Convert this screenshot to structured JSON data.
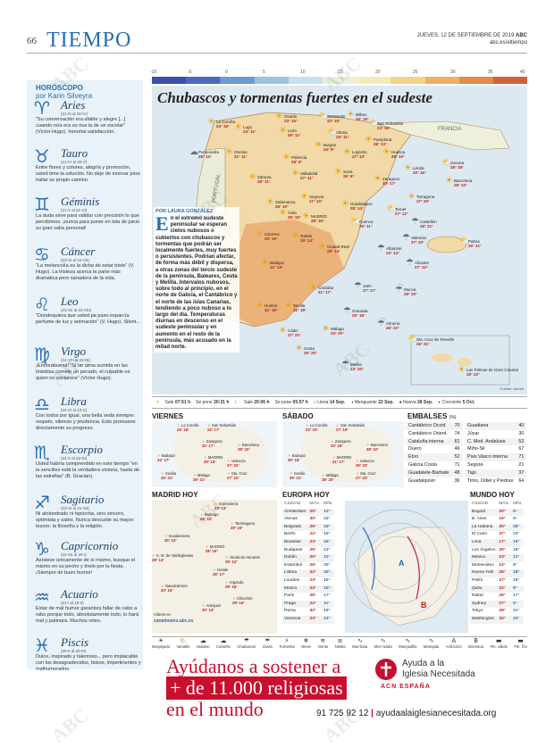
{
  "header": {
    "page_number": "66",
    "section": "TIEMPO",
    "date": "JUEVES, 12 DE SEPTIEMBRE DE 2019",
    "brand": "ABC",
    "url": "abc.es/eltiempo"
  },
  "horoscope": {
    "title": "HORÓSCOPO",
    "author": "por Karin Silveyra",
    "signs": [
      {
        "glyph": "♈",
        "name": "Aries",
        "dates": "(21-III al 20-IV)",
        "text": "“Su conversación era afable y alegre [...] cuando reía era su risa la de un escolar” (Víctor Hugo). Inmortal satisfacción."
      },
      {
        "glyph": "♉",
        "name": "Tauro",
        "dates": "(21-IV al 20-V)",
        "text": "Entre flores y colores, alegría y promoción, usted time la solución. No deje de innovar para hallar su propio camino."
      },
      {
        "glyph": "♊",
        "name": "Géminis",
        "dates": "(21-V al 21-VI)",
        "text": "La duda sirve para validar con precisión lo que percibimos. ¡nunca para poner en tela de juicio su gran valía personal!"
      },
      {
        "glyph": "♋",
        "name": "Cáncer",
        "dates": "(22-VI al 22-VII)",
        "text": "“La melancolía es la dicha de estar triste” (V. Hugo). La tristeza acerca la parte más dramática pero sanadora de la vida."
      },
      {
        "glyph": "♌",
        "name": "Leo",
        "dates": "(23-VII al 22-VIII)",
        "text": "“Dondequiera que usted pa paso esparcía perfume de luz y animación” (V. Hugo). Silent..."
      },
      {
        "glyph": "♍",
        "name": "Virgo",
        "dates": "(24-VIII al 23-IX)",
        "text": "¡Enhorabuena! “Si un alma sumida en las tinieblas comete un pecado, el culpable es quien no esclarece” (Víctor Hugo)."
      },
      {
        "glyph": "♎",
        "name": "Libra",
        "dates": "(24-IX al 23-X)",
        "text": "Con todos por igual, una bella seda siempre: respeto, silencio y prudencia. Esto promueve directamente su progreso."
      },
      {
        "glyph": "♏",
        "name": "Escorpio",
        "dates": "(24-X al 22-XI)",
        "text": "Usted habría comprendido en este tiempo “en la sencillez está la verdadera victoria, hasta de las estrellas” (B. Gracián)."
      },
      {
        "glyph": "♐",
        "name": "Sagitario",
        "dates": "(23-XI al 21-XII)",
        "text": "Ni atolondrado ni hipócrita, sino sincero, optimista y sabio. Nunca descuide su mayor tesoro: la filosofía y la religión."
      },
      {
        "glyph": "♑",
        "name": "Capricornio",
        "dates": "(22-XII al 20-I)",
        "text": "Asístese únicamente de sí mismo, busque el mismo en su pecho y tírelo por la fiesta. ¡Siempre de buen humor!"
      },
      {
        "glyph": "♒",
        "name": "Acuario",
        "dates": "(21-I al 19-II)",
        "text": "Estar de mal humor garantiza fallar de cabo a rabo porque todo, absolutamente todo, lo hará mal y patinará. Muchos retes."
      },
      {
        "glyph": "♓",
        "name": "Piscis",
        "dates": "(20-II al 20-III)",
        "text": "Dulce, inspirado y talentoso... pero implacable con los desagradecidos, falsos, impertinentes y malhumorados."
      }
    ]
  },
  "temperature_scale": {
    "labels": [
      "-10",
      "-5",
      "0",
      "5",
      "10",
      "15",
      "20",
      "25",
      "30",
      "35",
      "40"
    ],
    "colors": [
      "#3b4fa8",
      "#4a6bbd",
      "#6b9bd1",
      "#9cc3e4",
      "#c6e0ee",
      "#e7f0d8",
      "#f4ecb8",
      "#f5d38a",
      "#eeb066",
      "#e38a4a",
      "#d1603a"
    ]
  },
  "main_map": {
    "title": "Chubascos y tormentas fuertes en el sudeste",
    "byline": "POR LAURA GONZÁLEZ",
    "article": "En el extremo sudeste peninsular se esperan cielos nubosos o cubiertos con chubascos y tormentas que podrán ser localmente fuertes, muy fuertes o persistentes. Podrían afectar, de forma más débil y dispersa, a otras zonas del tercio sudeste de la península, Baleares, Ceuta y Melilla. Intervalos nubosos, sobre todo al principio, en el norte de Galicia, el Cantábrico y el norte de las islas Canarias, tendiendo a poco nuboso a lo largo del día. Temperaturas diurnas en descenso en el sudeste peninsular y en aumento en el resto de la península, más acusado en la mitad norte.",
    "country_labels": [
      "FRANCIA",
      "PORTUGAL"
    ],
    "cities": [
      {
        "name": "Oviedo",
        "temps": "23° 15°"
      },
      {
        "name": "Santander",
        "temps": "22° 16°"
      },
      {
        "name": "Bilbao",
        "temps": "25° 15°"
      },
      {
        "name": "San Sebastián",
        "temps": "23° 16°"
      },
      {
        "name": "La Coruña",
        "temps": "24° 16°"
      },
      {
        "name": "Lugo",
        "temps": "24° 11°"
      },
      {
        "name": "León",
        "temps": "25° 11°"
      },
      {
        "name": "Vitoria",
        "temps": "25° 11°"
      },
      {
        "name": "Pamplona",
        "temps": "26° 13°"
      },
      {
        "name": "Burgos",
        "temps": "24° 8°"
      },
      {
        "name": "Logroño",
        "temps": "27° 13°"
      },
      {
        "name": "Huesca",
        "temps": "28° 15°"
      },
      {
        "name": "Pontevedra",
        "temps": "28° 13°"
      },
      {
        "name": "Orense",
        "temps": "31° 11°"
      },
      {
        "name": "Palencia",
        "temps": "28° 9°"
      },
      {
        "name": "Valladolid",
        "temps": "27° 11°"
      },
      {
        "name": "Soria",
        "temps": "26° 8°"
      },
      {
        "name": "Zaragoza",
        "temps": "30° 17°"
      },
      {
        "name": "Lérida",
        "temps": "30° 16°"
      },
      {
        "name": "Gerona",
        "temps": "28° 18°"
      },
      {
        "name": "Barcelona",
        "temps": "28° 22°"
      },
      {
        "name": "Zamora",
        "temps": "28° 11°"
      },
      {
        "name": "Segovia",
        "temps": "27° 10°"
      },
      {
        "name": "Guadalajara",
        "temps": "28° 14°"
      },
      {
        "name": "Teruel",
        "temps": "27° 12°"
      },
      {
        "name": "Tarragona",
        "temps": "27° 20°"
      },
      {
        "name": "Salamanca",
        "temps": "28° 10°"
      },
      {
        "name": "Ávila",
        "temps": "25° 10°"
      },
      {
        "name": "MADRID",
        "temps": "28° 16°"
      },
      {
        "name": "Cuenca",
        "temps": "25° 11°"
      },
      {
        "name": "Castellón",
        "temps": "28° 21°"
      },
      {
        "name": "Toledo",
        "temps": "29° 14°"
      },
      {
        "name": "Cáceres",
        "temps": "30° 16°"
      },
      {
        "name": "Valencia",
        "temps": "27° 20°"
      },
      {
        "name": "Palma",
        "temps": "29° 21°"
      },
      {
        "name": "Ciudad Real",
        "temps": "28° 14°"
      },
      {
        "name": "Albacete",
        "temps": "24° 14°"
      },
      {
        "name": "Badajoz",
        "temps": "31° 15°"
      },
      {
        "name": "Alicante",
        "temps": "27° 22°"
      },
      {
        "name": "Jaén",
        "temps": "27° 17°"
      },
      {
        "name": "Córdoba",
        "temps": "31° 17°"
      },
      {
        "name": "Murcia",
        "temps": "26° 20°"
      },
      {
        "name": "Huelva",
        "temps": "31° 19°"
      },
      {
        "name": "Sevilla",
        "temps": "32° 19°"
      },
      {
        "name": "Granada",
        "temps": "25° 16°"
      },
      {
        "name": "Almería",
        "temps": "26° 22°"
      },
      {
        "name": "Cádiz",
        "temps": "27° 21°"
      },
      {
        "name": "Málaga",
        "temps": "24° 20°"
      },
      {
        "name": "Ceuta",
        "temps": "26° 20°"
      },
      {
        "name": "Melilla",
        "temps": "24° 20°"
      },
      {
        "name": "Sta. Cruz de Tenerife",
        "temps": "26° 21°"
      },
      {
        "name": "Las Palmas de Gran Canaria",
        "temps": "26° 22°"
      }
    ],
    "source": "Fuente: Aemet"
  },
  "sun_moon": {
    "sale": "07:51 h",
    "se_pone": "20:31 h",
    "moon_sale": "20:06 h",
    "moon_se_pone": "05:57 h",
    "phases": [
      {
        "label": "Llena",
        "date": "14 Sep."
      },
      {
        "label": "Menguante",
        "date": "22 Sep."
      },
      {
        "label": "Nueva",
        "date": "28 Sep."
      },
      {
        "label": "Creciente",
        "date": "5 Oct."
      }
    ]
  },
  "forecast_viernes": {
    "title": "VIERNES",
    "cities": [
      {
        "name": "La Coruña",
        "temps": "24° 15°"
      },
      {
        "name": "San Sebastián",
        "temps": "24° 17°"
      },
      {
        "name": "Zaragoza",
        "temps": "31° 17°"
      },
      {
        "name": "Barcelona",
        "temps": "28° 22°"
      },
      {
        "name": "Badajoz",
        "temps": "34° 17°"
      },
      {
        "name": "MADRID",
        "temps": "29° 16°"
      },
      {
        "name": "Valencia",
        "temps": "27° 22°"
      },
      {
        "name": "Sevilla",
        "temps": "34° 21°"
      },
      {
        "name": "Málaga",
        "temps": "26° 21°"
      },
      {
        "name": "Sta. Cruz",
        "temps": "27° 22°"
      }
    ]
  },
  "forecast_sabado": {
    "title": "SÁBADO",
    "cities": [
      {
        "name": "La Coruña",
        "temps": "22° 15°"
      },
      {
        "name": "San Sebastián",
        "temps": "27° 16°"
      },
      {
        "name": "Zaragoza",
        "temps": "32° 18°"
      },
      {
        "name": "Barcelona",
        "temps": "28° 22°"
      },
      {
        "name": "Badajoz",
        "temps": "35° 18°"
      },
      {
        "name": "MADRID",
        "temps": "31° 17°"
      },
      {
        "name": "Valencia",
        "temps": "29° 22°"
      },
      {
        "name": "Sevilla",
        "temps": "35° 21°"
      },
      {
        "name": "Málaga",
        "temps": "28° 20°"
      },
      {
        "name": "Sta. Cruz",
        "temps": "27° 22°"
      }
    ]
  },
  "reservoirs": {
    "title": "EMBALSES",
    "unit": "(%)",
    "left": [
      {
        "name": "Cantábrico Occid.",
        "value": "70"
      },
      {
        "name": "Cantábrico Orient.",
        "value": "74"
      },
      {
        "name": "Cataluña interna",
        "value": "61"
      },
      {
        "name": "Duero",
        "value": "46"
      },
      {
        "name": "Ebro",
        "value": "52"
      },
      {
        "name": "Galicia Costa",
        "value": "71"
      },
      {
        "name": "Guadalete-Barbate",
        "value": "48"
      },
      {
        "name": "Guadalquivir",
        "value": "36"
      }
    ],
    "right": [
      {
        "name": "Guadiana",
        "value": "40"
      },
      {
        "name": "Júcar",
        "value": "30"
      },
      {
        "name": "C. Med. Andaluza",
        "value": "52"
      },
      {
        "name": "Miño-Sil",
        "value": "67"
      },
      {
        "name": "País Vasco interna",
        "value": "71"
      },
      {
        "name": "Segura",
        "value": "21"
      },
      {
        "name": "Tajo",
        "value": "37"
      },
      {
        "name": "Tinto, Odiel y Piedras",
        "value": "64"
      }
    ]
  },
  "madrid_hoy": {
    "title": "MADRID HOY",
    "cities": [
      {
        "name": "Somosierra",
        "temps": "23° 13°"
      },
      {
        "name": "Buitrago",
        "temps": "26° 12°"
      },
      {
        "name": "Torrelaguna",
        "temps": "29° 15°"
      },
      {
        "name": "Guadarrama",
        "temps": "25° 14°"
      },
      {
        "name": "S. M. de Valdeiglesias",
        "temps": "28° 14°"
      },
      {
        "name": "MADRID",
        "temps": "28° 16°"
      },
      {
        "name": "Alcalá de Henares",
        "temps": "29° 12°"
      },
      {
        "name": "Getafe",
        "temps": "28° 17°"
      },
      {
        "name": "Arganda",
        "temps": "28° 16°"
      },
      {
        "name": "Navalcarnero",
        "temps": "30° 16°"
      },
      {
        "name": "Chinchón",
        "temps": "28° 15°"
      },
      {
        "name": "Aranjuez",
        "temps": "32° 14°"
      }
    ],
    "more_text": "Vídeos en",
    "more_link": "canalmeteo.abc.es"
  },
  "europa_hoy": {
    "title": "EUROPA HOY",
    "headers": [
      "CIUDAD",
      "MÁX.",
      "MÍN."
    ],
    "rows": [
      [
        "Ámsterdam",
        "20°",
        "12°"
      ],
      [
        "Atenas",
        "30°",
        "22°"
      ],
      [
        "Belgrado",
        "26°",
        "15°"
      ],
      [
        "Berlín",
        "22°",
        "15°"
      ],
      [
        "Bruselas",
        "23°",
        "16°"
      ],
      [
        "Budapest",
        "25°",
        "13°"
      ],
      [
        "Dublín",
        "20°",
        "11°"
      ],
      [
        "Estambul",
        "26°",
        "20°"
      ],
      [
        "Lisboa",
        "32°",
        "20°"
      ],
      [
        "Londres",
        "23°",
        "16°"
      ],
      [
        "Moscú",
        "23°",
        "15°"
      ],
      [
        "París",
        "25°",
        "17°"
      ],
      [
        "Praga",
        "24°",
        "11°"
      ],
      [
        "Roma",
        "32°",
        "19°"
      ],
      [
        "Varsovia",
        "23°",
        "13°"
      ]
    ]
  },
  "mundo_hoy": {
    "title": "MUNDO HOY",
    "headers": [
      "CIUDAD",
      "MÁX.",
      "MÍN."
    ],
    "rows": [
      [
        "Bogotá",
        "20°",
        "9°"
      ],
      [
        "B. Aires",
        "16°",
        "9°"
      ],
      [
        "La Habana",
        "30°",
        "25°"
      ],
      [
        "El Cairo",
        "37°",
        "23°"
      ],
      [
        "Lima",
        "17°",
        "15°"
      ],
      [
        "Los Ángeles",
        "30°",
        "19°"
      ],
      [
        "México",
        "23°",
        "12°"
      ],
      [
        "Montevideo",
        "12°",
        "8°"
      ],
      [
        "Nueva York",
        "26°",
        "18°"
      ],
      [
        "Pekín",
        "27°",
        "15°"
      ],
      [
        "Quito",
        "22°",
        "8°"
      ],
      [
        "Rabat",
        "26°",
        "17°"
      ],
      [
        "Sydney",
        "27°",
        "5°"
      ],
      [
        "Tokyo",
        "28°",
        "21°"
      ],
      [
        "Washington",
        "32°",
        "22°"
      ]
    ]
  },
  "legend": {
    "items": [
      {
        "icon": "☀",
        "label": "Despejado"
      },
      {
        "icon": "⛅",
        "label": "Variable"
      },
      {
        "icon": "☁",
        "label": "Nuboso"
      },
      {
        "icon": "☁",
        "label": "Cubierto"
      },
      {
        "icon": "☂",
        "label": "Chubascos"
      },
      {
        "icon": "☔",
        "label": "Lluvia"
      },
      {
        "icon": "⚡",
        "label": "Tormenta"
      },
      {
        "icon": "❄",
        "label": "Nieve"
      },
      {
        "icon": "≋",
        "label": "Viento"
      },
      {
        "icon": "≡",
        "label": "Niebla"
      },
      {
        "icon": "∿",
        "label": "Mar llana"
      },
      {
        "icon": "∿",
        "label": "Mar rizada"
      },
      {
        "icon": "∿",
        "label": "Marejadilla"
      },
      {
        "icon": "∿",
        "label": "Marejada"
      },
      {
        "icon": "A",
        "label": "Anticiclón"
      },
      {
        "icon": "B",
        "label": "Borrasca"
      },
      {
        "icon": "▬",
        "label": "Fte. cálido"
      },
      {
        "icon": "▬",
        "label": "Fte. frío"
      }
    ]
  },
  "ad": {
    "line1": "Ayúdanos a sostener a",
    "line2": "+ de 11.000 religiosas",
    "line3": "en el mundo",
    "org_line1": "Ayuda a la",
    "org_line2": "Iglesia Necesitada",
    "org_acronym": "ACN ESPAÑA",
    "phone": "91 725 92 12",
    "separator": "|",
    "web": "ayudaalaiglesianecesitada.org"
  },
  "watermark": "ABC"
}
